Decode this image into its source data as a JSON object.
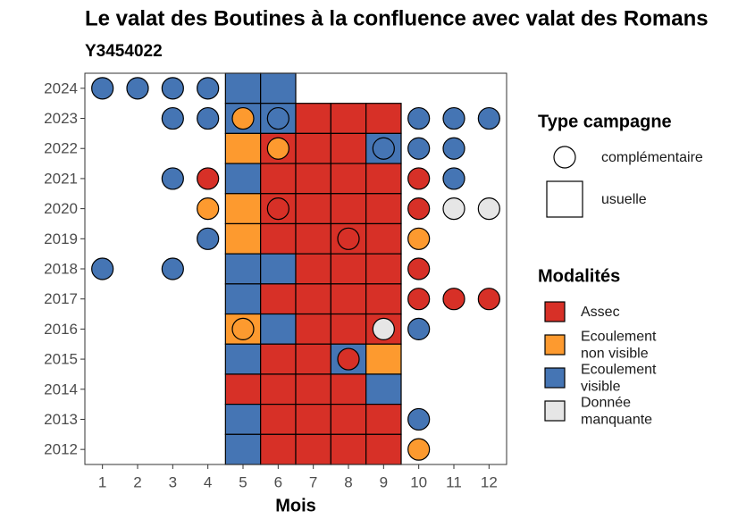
{
  "chart_data": {
    "type": "tile",
    "title": "Le valat des Boutines à la confluence avec valat des Romans",
    "subtitle": "Y3454022",
    "x_label": "Mois",
    "xlim": [
      0.5,
      12.5
    ],
    "xticks": [
      1,
      2,
      3,
      4,
      5,
      6,
      7,
      8,
      9,
      10,
      11,
      12
    ],
    "ylim": [
      2011.5,
      2024.5
    ],
    "yticks": [
      2012,
      2013,
      2014,
      2015,
      2016,
      2017,
      2018,
      2019,
      2020,
      2021,
      2022,
      2023,
      2024
    ],
    "shape_legend_title": "Type campagne",
    "shapes": [
      "complémentaire",
      "usuelle"
    ],
    "modality_legend_title": "Modalités",
    "modalities": [
      {
        "label": [
          "Assec"
        ],
        "color": "#d73027"
      },
      {
        "label": [
          "Ecoulement",
          "non visible"
        ],
        "color": "#fd9a2f"
      },
      {
        "label": [
          "Ecoulement",
          "visible"
        ],
        "color": "#4575b4"
      },
      {
        "label": [
          "Donnée",
          "manquante"
        ],
        "color": "#e6e6e6"
      }
    ],
    "points": [
      [
        5,
        2024,
        1,
        2
      ],
      [
        6,
        2024,
        1,
        2
      ],
      [
        5,
        2023,
        1,
        2
      ],
      [
        6,
        2023,
        1,
        2
      ],
      [
        7,
        2023,
        1,
        0
      ],
      [
        8,
        2023,
        1,
        0
      ],
      [
        9,
        2023,
        1,
        0
      ],
      [
        5,
        2022,
        1,
        1
      ],
      [
        6,
        2022,
        1,
        0
      ],
      [
        7,
        2022,
        1,
        0
      ],
      [
        8,
        2022,
        1,
        0
      ],
      [
        9,
        2022,
        1,
        2
      ],
      [
        5,
        2021,
        1,
        2
      ],
      [
        6,
        2021,
        1,
        0
      ],
      [
        7,
        2021,
        1,
        0
      ],
      [
        8,
        2021,
        1,
        0
      ],
      [
        9,
        2021,
        1,
        0
      ],
      [
        5,
        2020,
        1,
        1
      ],
      [
        6,
        2020,
        1,
        0
      ],
      [
        7,
        2020,
        1,
        0
      ],
      [
        8,
        2020,
        1,
        0
      ],
      [
        9,
        2020,
        1,
        0
      ],
      [
        5,
        2019,
        1,
        1
      ],
      [
        6,
        2019,
        1,
        0
      ],
      [
        7,
        2019,
        1,
        0
      ],
      [
        8,
        2019,
        1,
        0
      ],
      [
        9,
        2019,
        1,
        0
      ],
      [
        5,
        2018,
        1,
        2
      ],
      [
        6,
        2018,
        1,
        2
      ],
      [
        7,
        2018,
        1,
        0
      ],
      [
        8,
        2018,
        1,
        0
      ],
      [
        9,
        2018,
        1,
        0
      ],
      [
        5,
        2017,
        1,
        2
      ],
      [
        6,
        2017,
        1,
        0
      ],
      [
        7,
        2017,
        1,
        0
      ],
      [
        8,
        2017,
        1,
        0
      ],
      [
        9,
        2017,
        1,
        0
      ],
      [
        5,
        2016,
        1,
        1
      ],
      [
        6,
        2016,
        1,
        2
      ],
      [
        7,
        2016,
        1,
        0
      ],
      [
        8,
        2016,
        1,
        0
      ],
      [
        9,
        2016,
        1,
        0
      ],
      [
        5,
        2015,
        1,
        2
      ],
      [
        6,
        2015,
        1,
        0
      ],
      [
        7,
        2015,
        1,
        0
      ],
      [
        8,
        2015,
        1,
        2
      ],
      [
        9,
        2015,
        1,
        1
      ],
      [
        5,
        2014,
        1,
        0
      ],
      [
        6,
        2014,
        1,
        0
      ],
      [
        7,
        2014,
        1,
        0
      ],
      [
        8,
        2014,
        1,
        0
      ],
      [
        9,
        2014,
        1,
        2
      ],
      [
        5,
        2013,
        1,
        2
      ],
      [
        6,
        2013,
        1,
        0
      ],
      [
        7,
        2013,
        1,
        0
      ],
      [
        8,
        2013,
        1,
        0
      ],
      [
        9,
        2013,
        1,
        0
      ],
      [
        5,
        2012,
        1,
        2
      ],
      [
        6,
        2012,
        1,
        0
      ],
      [
        7,
        2012,
        1,
        0
      ],
      [
        8,
        2012,
        1,
        0
      ],
      [
        9,
        2012,
        1,
        0
      ],
      [
        1,
        2024,
        0,
        2
      ],
      [
        2,
        2024,
        0,
        2
      ],
      [
        3,
        2024,
        0,
        2
      ],
      [
        4,
        2024,
        0,
        2
      ],
      [
        3,
        2023,
        0,
        2
      ],
      [
        4,
        2023,
        0,
        2
      ],
      [
        5,
        2023,
        0,
        1
      ],
      [
        6,
        2023,
        0,
        2
      ],
      [
        10,
        2023,
        0,
        2
      ],
      [
        11,
        2023,
        0,
        2
      ],
      [
        12,
        2023,
        0,
        2
      ],
      [
        6,
        2022,
        0,
        1
      ],
      [
        9,
        2022,
        0,
        2
      ],
      [
        10,
        2022,
        0,
        2
      ],
      [
        11,
        2022,
        0,
        2
      ],
      [
        3,
        2021,
        0,
        2
      ],
      [
        4,
        2021,
        0,
        0
      ],
      [
        10,
        2021,
        0,
        0
      ],
      [
        11,
        2021,
        0,
        2
      ],
      [
        4,
        2020,
        0,
        1
      ],
      [
        6,
        2020,
        0,
        0
      ],
      [
        10,
        2020,
        0,
        0
      ],
      [
        11,
        2020,
        0,
        3
      ],
      [
        12,
        2020,
        0,
        3
      ],
      [
        4,
        2019,
        0,
        2
      ],
      [
        8,
        2019,
        0,
        0
      ],
      [
        10,
        2019,
        0,
        1
      ],
      [
        1,
        2018,
        0,
        2
      ],
      [
        3,
        2018,
        0,
        2
      ],
      [
        10,
        2018,
        0,
        0
      ],
      [
        10,
        2017,
        0,
        0
      ],
      [
        11,
        2017,
        0,
        0
      ],
      [
        12,
        2017,
        0,
        0
      ],
      [
        5,
        2016,
        0,
        1
      ],
      [
        9,
        2016,
        0,
        3
      ],
      [
        10,
        2016,
        0,
        2
      ],
      [
        8,
        2015,
        0,
        0
      ],
      [
        10,
        2013,
        0,
        2
      ],
      [
        10,
        2012,
        0,
        1
      ]
    ]
  }
}
